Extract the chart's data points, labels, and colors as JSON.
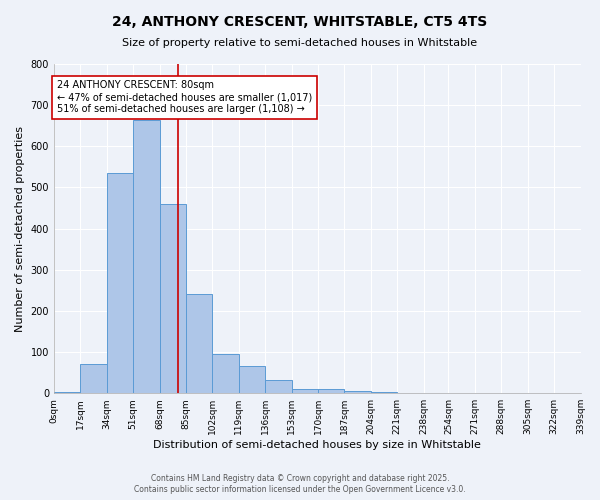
{
  "title": "24, ANTHONY CRESCENT, WHITSTABLE, CT5 4TS",
  "subtitle": "Size of property relative to semi-detached houses in Whitstable",
  "xlabel": "Distribution of semi-detached houses by size in Whitstable",
  "ylabel": "Number of semi-detached properties",
  "bin_edges": [
    0,
    17,
    34,
    51,
    68,
    85,
    102,
    119,
    136,
    153,
    170,
    187,
    204,
    221,
    238,
    254,
    271,
    288,
    305,
    322,
    339
  ],
  "bar_heights": [
    2,
    70,
    535,
    665,
    460,
    240,
    95,
    67,
    32,
    10,
    10,
    5,
    2,
    0,
    0,
    0,
    0,
    0,
    0,
    0
  ],
  "bar_color": "#aec6e8",
  "bar_edge_color": "#5b9bd5",
  "property_line_x": 80,
  "property_line_color": "#cc0000",
  "annotation_text": "24 ANTHONY CRESCENT: 80sqm\n← 47% of semi-detached houses are smaller (1,017)\n51% of semi-detached houses are larger (1,108) →",
  "annotation_box_color": "#ffffff",
  "annotation_box_edge_color": "#cc0000",
  "ylim": [
    0,
    800
  ],
  "background_color": "#eef2f9",
  "grid_color": "#ffffff",
  "tick_labels": [
    "0sqm",
    "17sqm",
    "34sqm",
    "51sqm",
    "68sqm",
    "85sqm",
    "102sqm",
    "119sqm",
    "136sqm",
    "153sqm",
    "170sqm",
    "187sqm",
    "204sqm",
    "221sqm",
    "238sqm",
    "254sqm",
    "271sqm",
    "288sqm",
    "305sqm",
    "322sqm",
    "339sqm"
  ],
  "footer_line1": "Contains HM Land Registry data © Crown copyright and database right 2025.",
  "footer_line2": "Contains public sector information licensed under the Open Government Licence v3.0."
}
